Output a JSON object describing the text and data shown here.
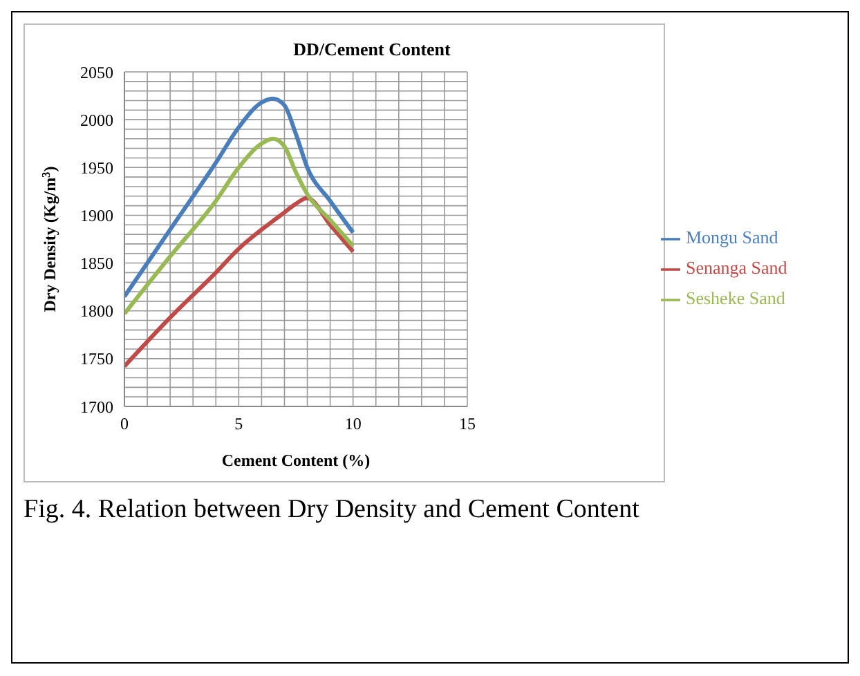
{
  "chart_data": {
    "type": "line",
    "title": "DD/Cement Content",
    "xlabel": "Cement Content (%)",
    "ylabel": "Dry Density (Kg/m$^{3}$)",
    "x": [
      0,
      2,
      4,
      5,
      6,
      6.5,
      7,
      7.5,
      8,
      9,
      10
    ],
    "series": [
      {
        "name": "Mongu Sand",
        "color": "#4a7ebb",
        "values": [
          1815,
          1885,
          1955,
          1992,
          2018,
          2022,
          2015,
          1985,
          1950,
          1915,
          1882
        ]
      },
      {
        "name": "Senanga Sand",
        "color": "#be4b48",
        "values": [
          1742,
          1793,
          1840,
          1865,
          1885,
          1894,
          1903,
          1912,
          1918,
          1890,
          1862
        ]
      },
      {
        "name": "Sesheke Sand",
        "color": "#98b954",
        "values": [
          1797,
          1857,
          1915,
          1950,
          1975,
          1980,
          1972,
          1945,
          1922,
          1895,
          1868
        ]
      }
    ],
    "xlim": [
      0,
      15
    ],
    "xticks": [
      0,
      {
        "value": 1,
        "label": null
      },
      {
        "value": 2,
        "label": null
      },
      {
        "value": 3,
        "label": null
      },
      {
        "value": 4,
        "label": null
      },
      5,
      {
        "value": 6,
        "label": null
      },
      {
        "value": 7,
        "label": null
      },
      {
        "value": 8,
        "label": null
      },
      {
        "value": 9,
        "label": null
      },
      10,
      {
        "value": 11,
        "label": null
      },
      {
        "value": 12,
        "label": null
      },
      {
        "value": 13,
        "label": null
      },
      {
        "value": 14,
        "label": null
      },
      15
    ],
    "ylim": [
      1700,
      2050
    ],
    "yticks": [
      1700,
      {
        "value": 1710,
        "label": null
      },
      {
        "value": 1720,
        "label": null
      },
      {
        "value": 1730,
        "label": null
      },
      {
        "value": 1740,
        "label": null
      },
      1750,
      {
        "value": 1760,
        "label": null
      },
      {
        "value": 1770,
        "label": null
      },
      {
        "value": 1780,
        "label": null
      },
      {
        "value": 1790,
        "label": null
      },
      1800,
      {
        "value": 1810,
        "label": null
      },
      {
        "value": 1820,
        "label": null
      },
      {
        "value": 1830,
        "label": null
      },
      {
        "value": 1840,
        "label": null
      },
      1850,
      {
        "value": 1860,
        "label": null
      },
      {
        "value": 1870,
        "label": null
      },
      {
        "value": 1880,
        "label": null
      },
      {
        "value": 1890,
        "label": null
      },
      1900,
      {
        "value": 1910,
        "label": null
      },
      {
        "value": 1920,
        "label": null
      },
      {
        "value": 1930,
        "label": null
      },
      {
        "value": 1940,
        "label": null
      },
      1950,
      {
        "value": 1960,
        "label": null
      },
      {
        "value": 1970,
        "label": null
      },
      {
        "value": 1980,
        "label": null
      },
      {
        "value": 1990,
        "label": null
      },
      2000,
      {
        "value": 2010,
        "label": null
      },
      {
        "value": 2020,
        "label": null
      },
      {
        "value": 2030,
        "label": null
      },
      {
        "value": 2040,
        "label": null
      },
      2050
    ],
    "grid": true,
    "legend": "right",
    "marker": "none",
    "line_style": "solid",
    "annotations": [
      "Fig. 4. Relation between Dry Density and Cement Content"
    ]
  }
}
